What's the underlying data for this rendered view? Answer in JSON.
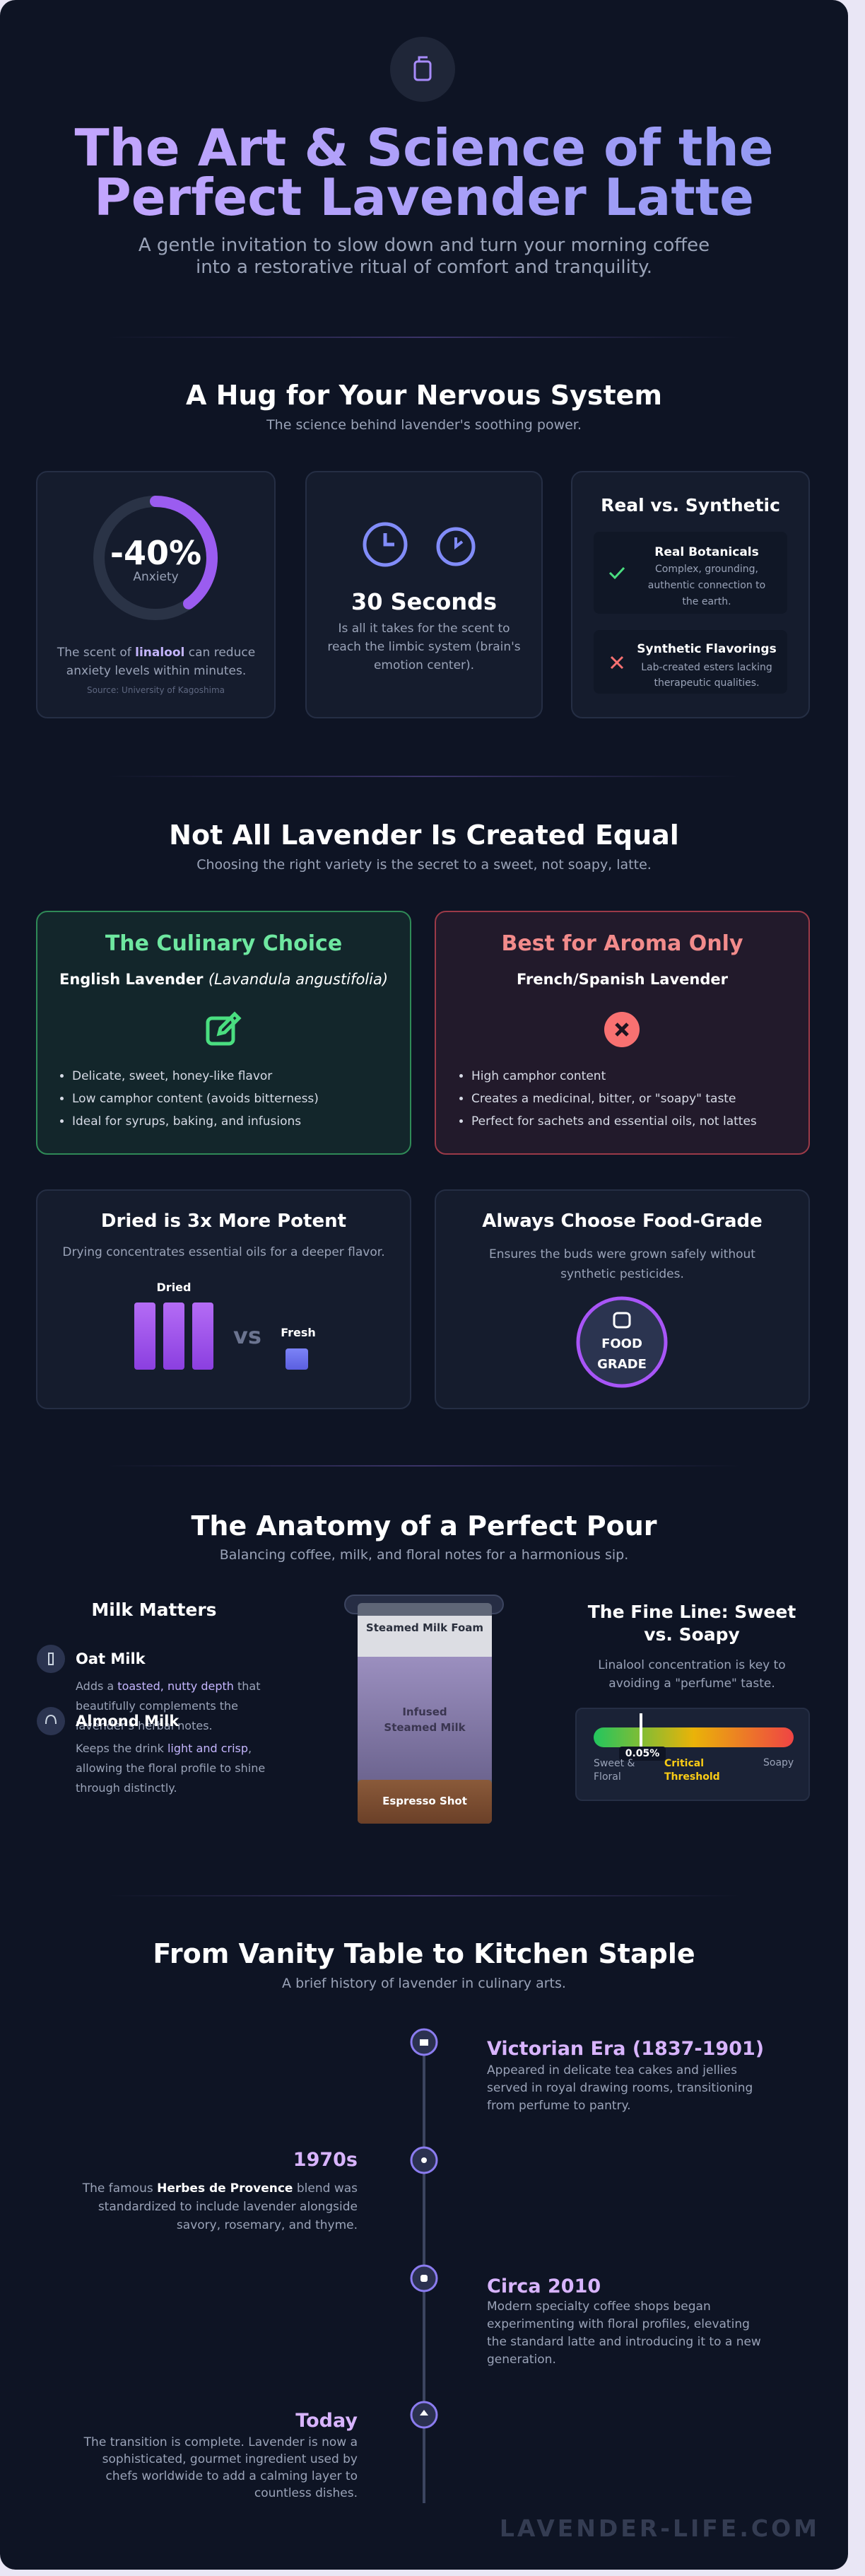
{
  "header": {
    "title_line1": "The Art & Science of the",
    "title_line2": "Perfect Lavender Latte",
    "subtitle": "A gentle invitation to slow down and turn your morning coffee into a restorative ritual of comfort and tranquility."
  },
  "science": {
    "title": "A Hug for Your Nervous System",
    "subtitle": "The science behind lavender's soothing power.",
    "stat": {
      "value": "-40%",
      "label": "Anxiety",
      "text_before": "The scent of ",
      "text_highlight": "linalool",
      "text_after": " can reduce anxiety levels within minutes.",
      "source": "Source: University of Kagoshima"
    },
    "time": {
      "value": "30 Seconds",
      "text": "Is all it takes for the scent to reach the limbic system (brain's emotion center)."
    },
    "compare": {
      "title": "Real vs. Synthetic",
      "items": [
        {
          "title": "Real Botanicals",
          "text": "Complex, grounding, authentic connection to the earth."
        },
        {
          "title": "Synthetic Flavorings",
          "text": "Lab-created esters lacking therapeutic qualities."
        }
      ]
    }
  },
  "varieties": {
    "title": "Not All Lavender Is Created Equal",
    "subtitle": "Choosing the right variety is the secret to a sweet, not soapy, latte.",
    "culinary": {
      "title": "The Culinary Choice",
      "name": "English Lavender",
      "latin": "(Lavandula angustifolia)",
      "bullets": [
        "Delicate, sweet, honey-like flavor",
        "Low camphor content (avoids bitterness)",
        "Ideal for syrups, baking, and infusions"
      ]
    },
    "aroma": {
      "title": "Best for Aroma Only",
      "name": "French/Spanish Lavender",
      "bullets": [
        "High camphor content",
        "Creates a medicinal, bitter, or \"soapy\" taste",
        "Perfect for sachets and essential oils, not lattes"
      ]
    },
    "potency": {
      "title": "Dried is 3x More Potent",
      "subtitle": "Drying concentrates essential oils for a deeper flavor.",
      "dried": "Dried",
      "vs": "vs",
      "fresh": "Fresh"
    },
    "food_grade": {
      "title": "Always Choose Food-Grade",
      "subtitle": "Ensures the buds were grown safely without synthetic pesticides.",
      "badge_line1": "FOOD",
      "badge_line2": "GRADE"
    }
  },
  "pour": {
    "title": "The Anatomy of a Perfect Pour",
    "subtitle": "Balancing coffee, milk, and floral notes for a harmonious sip.",
    "milk": {
      "title": "Milk Matters",
      "items": [
        {
          "name": "Oat Milk",
          "before": "Adds a ",
          "highlight": "toasted, nutty depth",
          "after": " that beautifully complements the lavender's herbal notes."
        },
        {
          "name": "Almond Milk",
          "before": "Keeps the drink ",
          "highlight": "light and crisp",
          "after": ", allowing the floral profile to shine through distinctly."
        }
      ]
    },
    "glass": {
      "foam": "Steamed Milk Foam",
      "milk": "Infused Steamed Milk",
      "espresso": "Espresso Shot"
    },
    "fine_line": {
      "title": "The Fine Line: Sweet vs. Soapy",
      "subtitle": "Linalool concentration is key to avoiding a \"perfume\" taste.",
      "marker": "0.05%",
      "left": "Sweet & Floral",
      "middle": "Critical Threshold",
      "right": "Soapy"
    }
  },
  "history": {
    "title": "From Vanity Table to Kitchen Staple",
    "subtitle": "A brief history of lavender in culinary arts.",
    "events": [
      {
        "title": "Victorian Era (1837-1901)",
        "before": "Appeared in delicate tea cakes and jellies served in royal drawing rooms, transitioning from perfume to pantry.",
        "highlight": "",
        "after": ""
      },
      {
        "title": "1970s",
        "before": "The famous ",
        "highlight": "Herbes de Provence",
        "after": " blend was standardized to include lavender alongside savory, rosemary, and thyme."
      },
      {
        "title": "Circa 2010",
        "before": "Modern specialty coffee shops began experimenting with floral profiles, elevating the standard latte and introducing it to a new generation.",
        "highlight": "",
        "after": ""
      },
      {
        "title": "Today",
        "before": "The transition is complete. Lavender is now a sophisticated, gourmet ingredient used by chefs worldwide to add a calming layer to countless dishes.",
        "highlight": "",
        "after": ""
      }
    ]
  },
  "footer": "LAVENDER-LIFE.COM"
}
